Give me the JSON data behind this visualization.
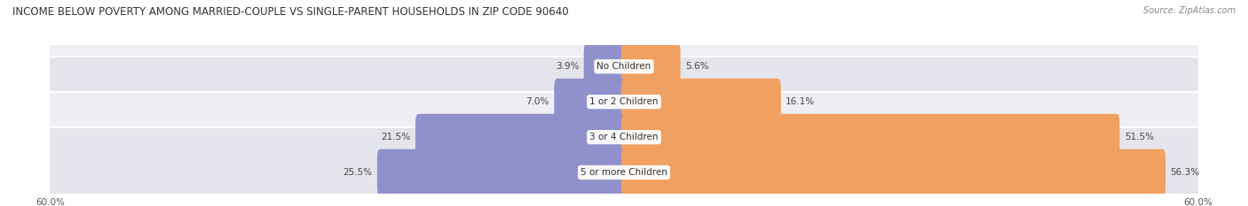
{
  "title": "INCOME BELOW POVERTY AMONG MARRIED-COUPLE VS SINGLE-PARENT HOUSEHOLDS IN ZIP CODE 90640",
  "source": "Source: ZipAtlas.com",
  "categories": [
    "No Children",
    "1 or 2 Children",
    "3 or 4 Children",
    "5 or more Children"
  ],
  "married_values": [
    3.9,
    7.0,
    21.5,
    25.5
  ],
  "single_values": [
    5.6,
    16.1,
    51.5,
    56.3
  ],
  "married_color": "#9090cc",
  "single_color": "#f0a060",
  "row_bg_colors": [
    "#eeeef4",
    "#e4e4ec"
  ],
  "axis_max": 60.0,
  "title_fontsize": 8.5,
  "label_fontsize": 7.5,
  "value_fontsize": 7.5,
  "legend_fontsize": 7.5,
  "axis_label_fontsize": 7.5,
  "background_color": "#ffffff"
}
